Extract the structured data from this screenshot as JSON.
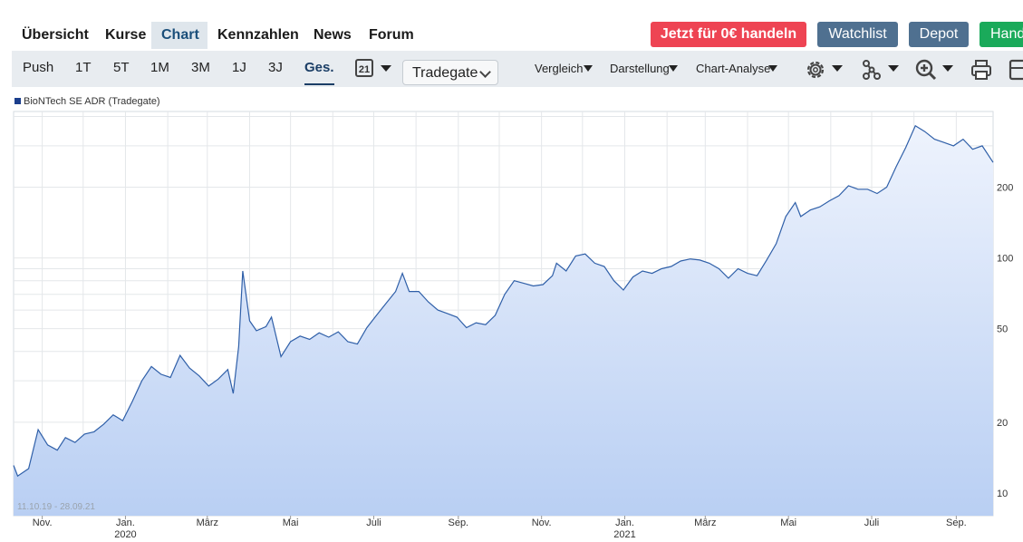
{
  "nav": {
    "tabs": [
      {
        "label": "Übersicht"
      },
      {
        "label": "Kurse"
      },
      {
        "label": "Chart",
        "active": true
      },
      {
        "label": "Kennzahlen"
      },
      {
        "label": "News"
      },
      {
        "label": "Forum"
      }
    ],
    "trade_button": "Jetzt für 0€ handeln",
    "watchlist_button": "Watchlist",
    "depot_button": "Depot",
    "handel_button": "Hand"
  },
  "toolbar": {
    "ranges": [
      "Push",
      "1T",
      "5T",
      "1M",
      "3M",
      "1J",
      "3J",
      "Ges."
    ],
    "active_range": "Ges.",
    "calendar_day": "21",
    "exchange_select": "Tradegate",
    "menus": [
      "Vergleich",
      "Darstellung",
      "Chart-Analyse"
    ],
    "icons": [
      "gear-icon",
      "share-nodes-icon",
      "zoom-in-icon",
      "print-icon",
      "export-icon"
    ]
  },
  "colors": {
    "accent": "#1b4f7a",
    "trade_button": "#ee4453",
    "secondary_button": "#4f7090",
    "handel_button": "#1aaa5a",
    "line": "#2f5fa8",
    "area_top": "#eef3fd",
    "area_bottom": "#b9cff3"
  },
  "chart_data": {
    "type": "area",
    "series": [
      {
        "name": "BioNTech SE ADR (Tradegate)"
      }
    ],
    "y_scale": "log",
    "y_ticks": [
      10,
      20,
      50,
      100,
      200
    ],
    "ylim": [
      8,
      420
    ],
    "x_range": [
      "2019-10-11",
      "2021-09-28"
    ],
    "x_ticks": [
      {
        "label": "Nov.",
        "date": "2019-11-01"
      },
      {
        "label": "Jan.",
        "year": "2020",
        "date": "2020-01-01"
      },
      {
        "label": "März",
        "date": "2020-03-01"
      },
      {
        "label": "Mai",
        "date": "2020-05-01"
      },
      {
        "label": "Juli",
        "date": "2020-07-01"
      },
      {
        "label": "Sep.",
        "date": "2020-09-01"
      },
      {
        "label": "Nov.",
        "date": "2020-11-01"
      },
      {
        "label": "Jan.",
        "year": "2021",
        "date": "2021-01-01"
      },
      {
        "label": "März",
        "date": "2021-03-01"
      },
      {
        "label": "Mai",
        "date": "2021-05-01"
      },
      {
        "label": "Juli",
        "date": "2021-07-01"
      },
      {
        "label": "Sep.",
        "date": "2021-09-01"
      }
    ],
    "date_range_label": "11.10.19 - 28.09.21",
    "grid": true,
    "points": [
      [
        "2019-10-11",
        13.1
      ],
      [
        "2019-10-14",
        11.8
      ],
      [
        "2019-10-22",
        12.7
      ],
      [
        "2019-10-29",
        18.6
      ],
      [
        "2019-11-05",
        16.0
      ],
      [
        "2019-11-12",
        15.2
      ],
      [
        "2019-11-18",
        17.2
      ],
      [
        "2019-11-25",
        16.4
      ],
      [
        "2019-12-02",
        17.8
      ],
      [
        "2019-12-09",
        18.2
      ],
      [
        "2019-12-16",
        19.6
      ],
      [
        "2019-12-23",
        21.5
      ],
      [
        "2019-12-30",
        20.3
      ],
      [
        "2020-01-06",
        24.5
      ],
      [
        "2020-01-13",
        30.0
      ],
      [
        "2020-01-20",
        34.5
      ],
      [
        "2020-01-27",
        32.0
      ],
      [
        "2020-02-03",
        31.0
      ],
      [
        "2020-02-10",
        38.5
      ],
      [
        "2020-02-17",
        34.0
      ],
      [
        "2020-02-24",
        31.5
      ],
      [
        "2020-03-02",
        28.5
      ],
      [
        "2020-03-09",
        30.5
      ],
      [
        "2020-03-16",
        33.5
      ],
      [
        "2020-03-20",
        26.5
      ],
      [
        "2020-03-24",
        42.0
      ],
      [
        "2020-03-27",
        88.0
      ],
      [
        "2020-04-01",
        54.0
      ],
      [
        "2020-04-06",
        49.0
      ],
      [
        "2020-04-13",
        51.0
      ],
      [
        "2020-04-17",
        56.0
      ],
      [
        "2020-04-24",
        38.0
      ],
      [
        "2020-05-01",
        44.0
      ],
      [
        "2020-05-08",
        46.5
      ],
      [
        "2020-05-15",
        45.0
      ],
      [
        "2020-05-22",
        48.0
      ],
      [
        "2020-05-29",
        46.0
      ],
      [
        "2020-06-05",
        48.5
      ],
      [
        "2020-06-12",
        44.0
      ],
      [
        "2020-06-19",
        43.0
      ],
      [
        "2020-06-26",
        50.5
      ],
      [
        "2020-07-03",
        57.0
      ],
      [
        "2020-07-10",
        64.0
      ],
      [
        "2020-07-17",
        72.0
      ],
      [
        "2020-07-22",
        86.0
      ],
      [
        "2020-07-27",
        72.0
      ],
      [
        "2020-08-03",
        72.0
      ],
      [
        "2020-08-10",
        65.0
      ],
      [
        "2020-08-17",
        60.0
      ],
      [
        "2020-08-24",
        58.0
      ],
      [
        "2020-08-31",
        56.0
      ],
      [
        "2020-09-07",
        50.5
      ],
      [
        "2020-09-14",
        53.0
      ],
      [
        "2020-09-21",
        52.0
      ],
      [
        "2020-09-28",
        57.0
      ],
      [
        "2020-10-05",
        70.0
      ],
      [
        "2020-10-12",
        80.0
      ],
      [
        "2020-10-19",
        78.0
      ],
      [
        "2020-10-26",
        76.0
      ],
      [
        "2020-11-02",
        77.0
      ],
      [
        "2020-11-09",
        84.0
      ],
      [
        "2020-11-12",
        95.0
      ],
      [
        "2020-11-19",
        88.0
      ],
      [
        "2020-11-26",
        102.0
      ],
      [
        "2020-12-03",
        104.0
      ],
      [
        "2020-12-10",
        95.0
      ],
      [
        "2020-12-17",
        92.0
      ],
      [
        "2020-12-24",
        80.0
      ],
      [
        "2020-12-31",
        73.0
      ],
      [
        "2021-01-07",
        83.0
      ],
      [
        "2021-01-14",
        88.0
      ],
      [
        "2021-01-21",
        86.0
      ],
      [
        "2021-01-28",
        90.0
      ],
      [
        "2021-02-04",
        92.0
      ],
      [
        "2021-02-11",
        97.0
      ],
      [
        "2021-02-18",
        99.0
      ],
      [
        "2021-02-25",
        98.0
      ],
      [
        "2021-03-04",
        95.0
      ],
      [
        "2021-03-11",
        90.0
      ],
      [
        "2021-03-18",
        82.0
      ],
      [
        "2021-03-25",
        90.0
      ],
      [
        "2021-04-01",
        86.0
      ],
      [
        "2021-04-08",
        84.0
      ],
      [
        "2021-04-15",
        98.0
      ],
      [
        "2021-04-22",
        115.0
      ],
      [
        "2021-04-29",
        150.0
      ],
      [
        "2021-05-06",
        172.0
      ],
      [
        "2021-05-10",
        150.0
      ],
      [
        "2021-05-17",
        160.0
      ],
      [
        "2021-05-24",
        165.0
      ],
      [
        "2021-05-31",
        175.0
      ],
      [
        "2021-06-07",
        184.0
      ],
      [
        "2021-06-14",
        203.0
      ],
      [
        "2021-06-21",
        196.0
      ],
      [
        "2021-06-28",
        196.0
      ],
      [
        "2021-07-05",
        188.0
      ],
      [
        "2021-07-12",
        200.0
      ],
      [
        "2021-07-19",
        245.0
      ],
      [
        "2021-07-26",
        295.0
      ],
      [
        "2021-08-02",
        365.0
      ],
      [
        "2021-08-09",
        345.0
      ],
      [
        "2021-08-16",
        320.0
      ],
      [
        "2021-08-23",
        310.0
      ],
      [
        "2021-08-30",
        300.0
      ],
      [
        "2021-09-06",
        320.0
      ],
      [
        "2021-09-13",
        290.0
      ],
      [
        "2021-09-20",
        300.0
      ],
      [
        "2021-09-28",
        255.0
      ]
    ]
  }
}
